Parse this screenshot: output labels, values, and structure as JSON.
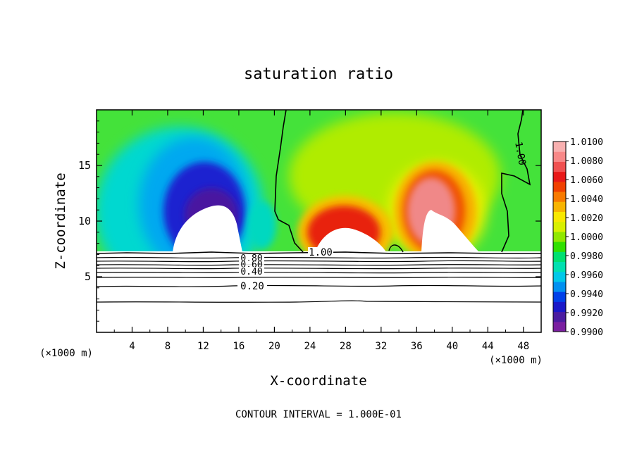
{
  "chart_data": {
    "type": "heatmap",
    "title": "saturation ratio",
    "xlabel": "X-coordinate",
    "ylabel": "Z-coordinate",
    "x_unit_label": "(×1000 m)",
    "y_unit_label": "(×1000 m)",
    "footer": "CONTOUR INTERVAL = 1.000E-01",
    "xlim": [
      0,
      50
    ],
    "ylim": [
      0,
      20
    ],
    "x_ticks": [
      4,
      8,
      12,
      16,
      20,
      24,
      28,
      32,
      36,
      40,
      44,
      48
    ],
    "y_ticks": [
      5,
      10,
      15
    ],
    "colorbar": {
      "min": 0.99,
      "max": 1.01,
      "tick_labels": [
        "1.0100",
        "1.0080",
        "1.0060",
        "1.0040",
        "1.0020",
        "1.0000",
        "0.9980",
        "0.9960",
        "0.9940",
        "0.9920",
        "0.9900"
      ],
      "colors": [
        "#7a1fa0",
        "#4b1ca0",
        "#1a18c8",
        "#0040e8",
        "#0090f0",
        "#00c8e8",
        "#00e0b0",
        "#00e070",
        "#30e000",
        "#90e800",
        "#d8f000",
        "#f8e800",
        "#f8b400",
        "#f87a00",
        "#f04000",
        "#e81818",
        "#f05050",
        "#f88888",
        "#f8b0b0"
      ]
    },
    "contour_labels": [
      {
        "text": "1.00",
        "x": 25.2,
        "z": 7.3
      },
      {
        "text": "1.00",
        "x": 47.5,
        "z": 16.0
      },
      {
        "text": "0.80",
        "x": 17.0,
        "z": 6.9
      },
      {
        "text": "0.60",
        "x": 17.0,
        "z": 6.3
      },
      {
        "text": "0.40",
        "x": 17.0,
        "z": 5.6
      },
      {
        "text": "0.20",
        "x": 17.0,
        "z": 4.1
      }
    ],
    "features": {
      "subsaturated_cores": [
        {
          "x_range": [
            8.5,
            17
          ],
          "peak_z": 13.0,
          "min_value": 0.99
        },
        {
          "x_range": [
            23,
            33
          ],
          "peak_z": 10.5,
          "max_value": 1.0075
        },
        {
          "x_range": [
            34,
            43
          ],
          "peak_z": 12.5,
          "max_value": 1.0085
        }
      ],
      "cloud_base_z": 7.2
    }
  }
}
